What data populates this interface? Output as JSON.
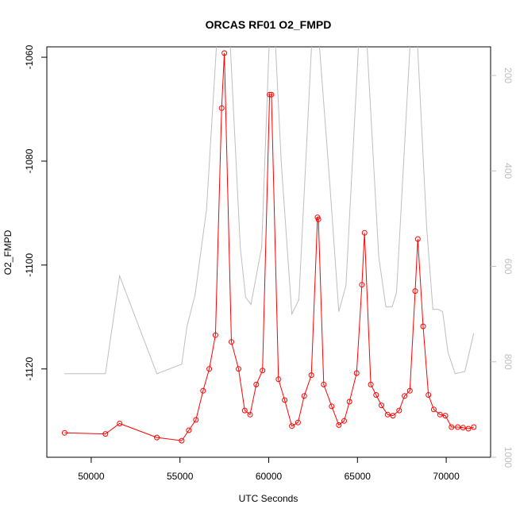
{
  "chart_data": {
    "type": "line",
    "title": "ORCAS RF01 O2_FMPD",
    "xlabel": "UTC Seconds",
    "ylabel": "O2_FMPD",
    "xlim": [
      47500,
      72500
    ],
    "ylim": [
      -1137,
      -1058
    ],
    "y2lim": [
      1000,
      140
    ],
    "y2_reversed": true,
    "x_ticks": [
      50000,
      55000,
      60000,
      65000,
      70000
    ],
    "y_ticks": [
      -1060,
      -1080,
      -1100,
      -1120
    ],
    "y2_ticks": [
      200,
      400,
      600,
      800,
      1000
    ],
    "grid": false,
    "series": [
      {
        "color": "#ff0000",
        "marker": "circle",
        "axis": "left",
        "x": [
          48500,
          50800,
          51600,
          53700,
          55100,
          55500,
          55900,
          56300,
          56650,
          57000,
          57350,
          57500,
          57900,
          58300,
          58650,
          58950,
          59300,
          59650,
          60050,
          60150,
          60550,
          60900,
          61300,
          61650,
          62000,
          62400,
          62750,
          62800,
          63100,
          63550,
          63950,
          64250,
          64550,
          64950,
          65250,
          65400,
          65750,
          66050,
          66350,
          66700,
          67000,
          67350,
          67650,
          67950,
          68250,
          68400,
          68700,
          69000,
          69300,
          69650,
          69950,
          70300,
          70650,
          70950,
          71250,
          71550
        ],
        "y": [
          -1132.3,
          -1132.5,
          -1130.5,
          -1133.2,
          -1133.8,
          -1131.8,
          -1129.8,
          -1124.2,
          -1120.0,
          -1113.5,
          -1069.8,
          -1059.2,
          -1114.8,
          -1120.0,
          -1128.0,
          -1128.8,
          -1123.0,
          -1120.3,
          -1067.2,
          -1067.2,
          -1122.0,
          -1126.0,
          -1131.0,
          -1130.3,
          -1125.2,
          -1121.2,
          -1090.8,
          -1091.2,
          -1123.0,
          -1127.2,
          -1130.8,
          -1130.0,
          -1126.3,
          -1120.8,
          -1103.8,
          -1093.8,
          -1123.0,
          -1125.0,
          -1127.0,
          -1128.8,
          -1129.0,
          -1128.0,
          -1125.2,
          -1124.2,
          -1105.0,
          -1095.0,
          -1111.8,
          -1125.0,
          -1127.8,
          -1128.8,
          -1129.0,
          -1131.2,
          -1131.2,
          -1131.3,
          -1131.5,
          -1131.2
        ]
      },
      {
        "color": "#bebebe",
        "marker": "none",
        "axis": "right",
        "x": [
          48500,
          50800,
          51600,
          53700,
          55100,
          55400,
          55850,
          56500,
          57100,
          57350,
          57800,
          58400,
          58700,
          59000,
          59600,
          60050,
          60350,
          60700,
          61300,
          61700,
          62450,
          62800,
          63450,
          63950,
          64350,
          65100,
          65500,
          66200,
          66600,
          66950,
          67200,
          68000,
          68350,
          68900,
          69250,
          69550,
          69800,
          70100,
          70500,
          71050,
          71550
        ],
        "y": [
          825,
          825,
          620,
          825,
          805,
          725,
          660,
          480,
          110,
          110,
          110,
          560,
          665,
          680,
          560,
          110,
          110,
          380,
          700,
          670,
          110,
          110,
          430,
          695,
          640,
          110,
          110,
          580,
          685,
          685,
          655,
          110,
          110,
          520,
          690,
          690,
          695,
          780,
          825,
          820,
          740
        ]
      }
    ]
  }
}
